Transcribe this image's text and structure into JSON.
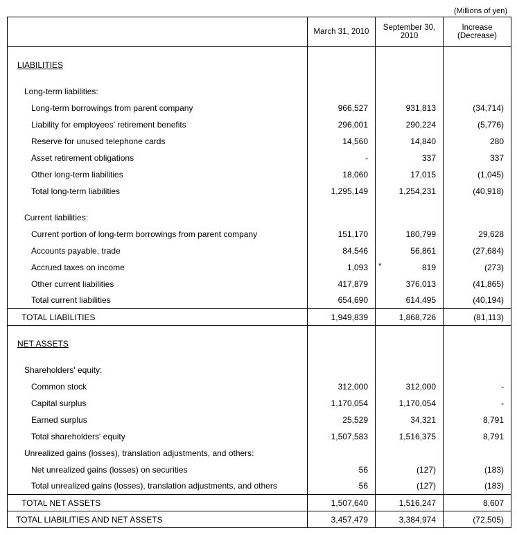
{
  "unit_label": "(Millions of yen)",
  "columns": {
    "c1": "March 31, 2010",
    "c2": "September 30, 2010",
    "c3_line1": "Increase",
    "c3_line2": "(Decrease)"
  },
  "sections": {
    "liabilities": {
      "title": "LIABILITIES",
      "long_term": {
        "header": "Long-term liabilities:",
        "items": [
          {
            "label": "Long-term borrowings from parent company",
            "v1": "966,527",
            "v2": "931,813",
            "v3": "(34,714)"
          },
          {
            "label": "Liability for employees' retirement benefits",
            "v1": "296,001",
            "v2": "290,224",
            "v3": "(5,776)"
          },
          {
            "label": "Reserve for unused telephone cards",
            "v1": "14,560",
            "v2": "14,840",
            "v3": "280"
          },
          {
            "label": "Asset retirement obligations",
            "v1": "-",
            "v2": "337",
            "v3": "337"
          },
          {
            "label": "Other long-term liabilities",
            "v1": "18,060",
            "v2": "17,015",
            "v3": "(1,045)"
          }
        ],
        "total": {
          "label": "Total long-term liabilities",
          "v1": "1,295,149",
          "v2": "1,254,231",
          "v3": "(40,918)"
        }
      },
      "current": {
        "header": "Current liabilities:",
        "items": [
          {
            "label": "Current portion of long-term borrowings from parent company",
            "v1": "151,170",
            "v2": "180,799",
            "v3": "29,628"
          },
          {
            "label": "Accounts payable, trade",
            "v1": "84,546",
            "v2": "56,861",
            "v3": "(27,684)"
          },
          {
            "label": "Accrued taxes on income",
            "v1": "1,093",
            "v2": "819",
            "v2_asterisk": "*",
            "v3": "(273)"
          },
          {
            "label": "Other current liabilities",
            "v1": "417,879",
            "v2": "376,013",
            "v3": "(41,865)"
          }
        ],
        "total": {
          "label": "Total current liabilities",
          "v1": "654,690",
          "v2": "614,495",
          "v3": "(40,194)"
        }
      },
      "total": {
        "label": "TOTAL LIABILITIES",
        "v1": "1,949,839",
        "v2": "1,868,726",
        "v3": "(81,113)"
      }
    },
    "net_assets": {
      "title": "NET ASSETS",
      "shareholders": {
        "header": "Shareholders' equity:",
        "items": [
          {
            "label": "Common stock",
            "v1": "312,000",
            "v2": "312,000",
            "v3": "-"
          },
          {
            "label": "Capital surplus",
            "v1": "1,170,054",
            "v2": "1,170,054",
            "v3": "-"
          },
          {
            "label": "Earned surplus",
            "v1": "25,529",
            "v2": "34,321",
            "v3": "8,791"
          }
        ],
        "total": {
          "label": "Total shareholders' equity",
          "v1": "1,507,583",
          "v2": "1,516,375",
          "v3": "8,791"
        }
      },
      "unrealized": {
        "header": "Unrealized gains (losses), translation adjustments, and others:",
        "items": [
          {
            "label": "Net unrealized gains (losses) on securities",
            "v1": "56",
            "v2": "(127)",
            "v3": "(183)"
          }
        ],
        "total": {
          "label": "Total unrealized gains (losses), translation adjustments, and others",
          "v1": "56",
          "v2": "(127)",
          "v3": "(183)"
        }
      },
      "total": {
        "label": "TOTAL NET ASSETS",
        "v1": "1,507,640",
        "v2": "1,516,247",
        "v3": "8,607"
      }
    },
    "grand_total": {
      "label": "TOTAL LIABILITIES AND NET ASSETS",
      "v1": "3,457,479",
      "v2": "3,384,974",
      "v3": "(72,505)"
    }
  }
}
